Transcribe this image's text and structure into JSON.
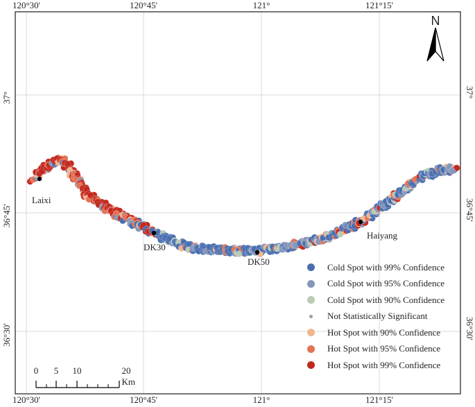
{
  "map": {
    "frame_color": "#1a1a1a",
    "grid_color": "#d9d9d9",
    "longitude_labels": [
      "120°30'",
      "120°45'",
      "121°",
      "121°15'"
    ],
    "latitude_labels": [
      "37°",
      "36°45'",
      "36°30'"
    ],
    "places": [
      {
        "name": "Laixi"
      },
      {
        "name": "DK30"
      },
      {
        "name": "DK50"
      },
      {
        "name": "Haiyang"
      }
    ]
  },
  "legend": {
    "items": [
      {
        "label": "Cold Spot with 99% Confidence",
        "color": "#4a6fb0"
      },
      {
        "label": "Cold Spot with 95% Confidence",
        "color": "#8597b9"
      },
      {
        "label": "Cold Spot with 90% Confidence",
        "color": "#b9cbb4"
      },
      {
        "label": "Not Statistically Significant",
        "color": "#9e9e9e"
      },
      {
        "label": "Hot Spot with 90% Confidence",
        "color": "#f2b68e"
      },
      {
        "label": "Hot Spot with 95% Confidence",
        "color": "#e47356"
      },
      {
        "label": "Hot Spot with 99% Confidence",
        "color": "#c3281e"
      }
    ]
  },
  "north_arrow": {
    "label": "N",
    "icon": "north-arrow-icon"
  },
  "scale_bar": {
    "labels": [
      "0",
      "5",
      "10",
      "20 Km"
    ]
  }
}
